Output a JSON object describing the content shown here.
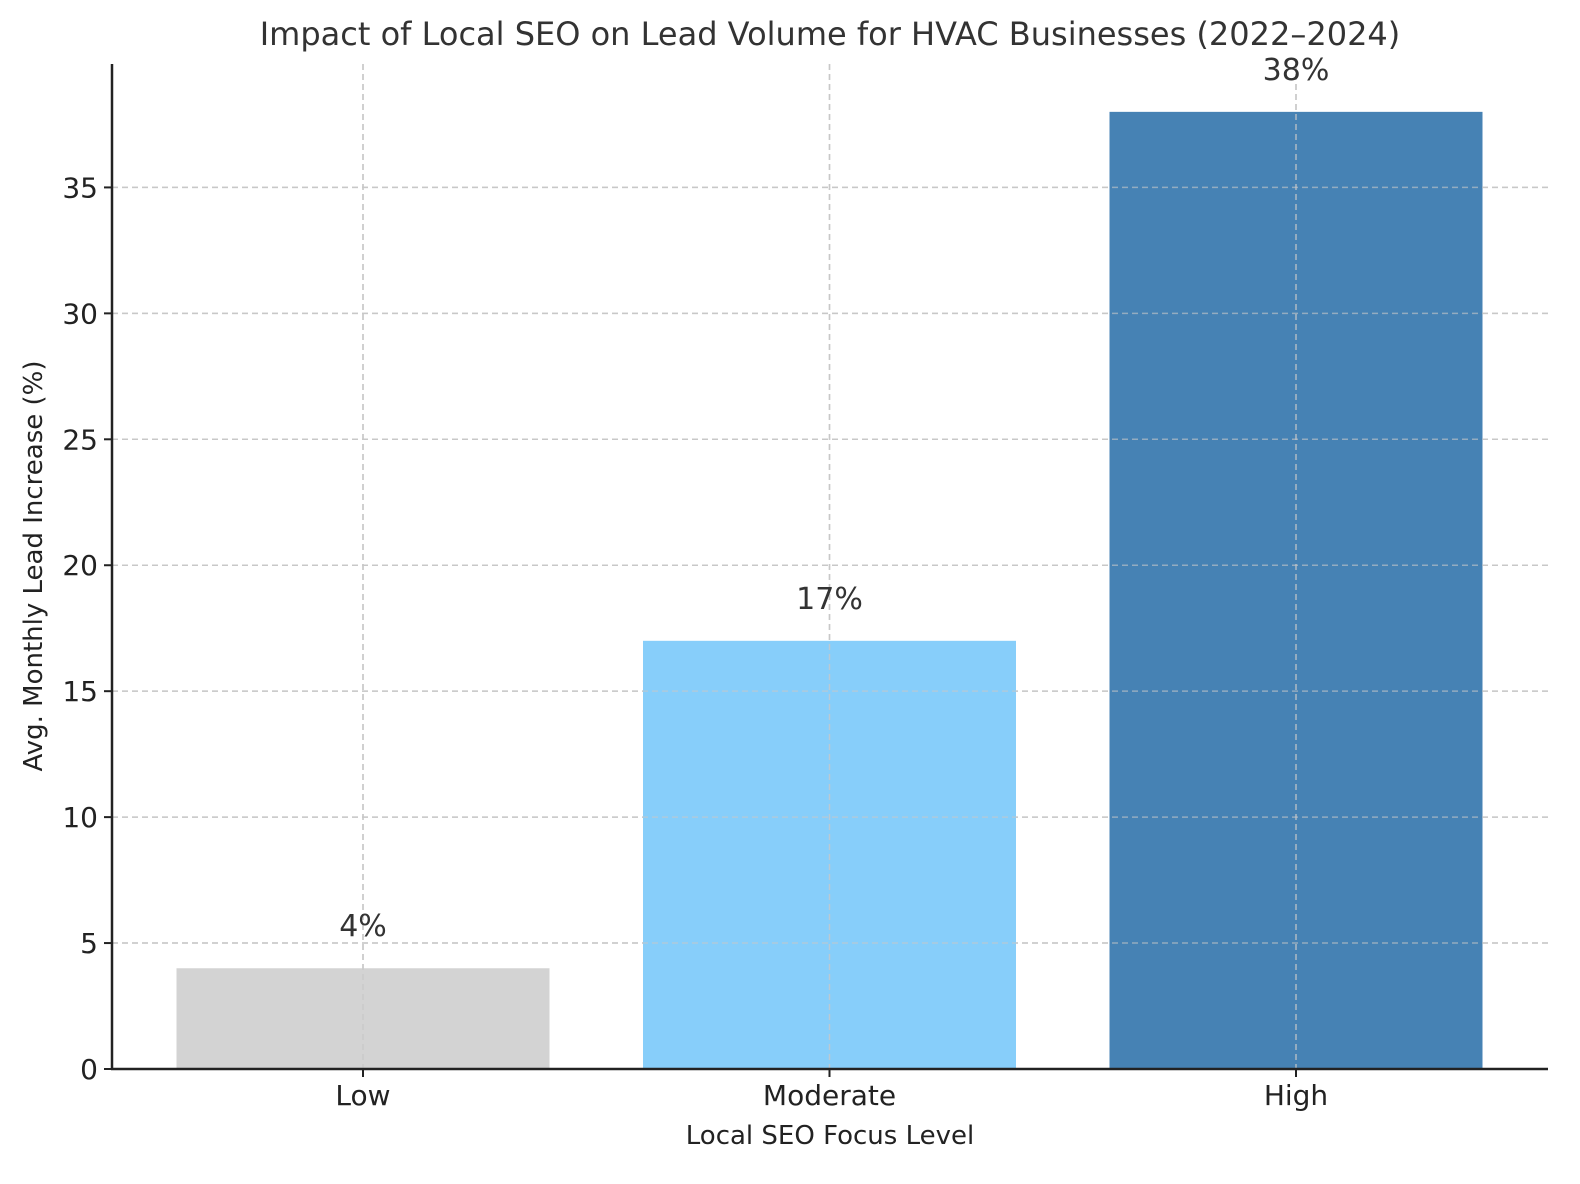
{
  "chart_data": {
    "type": "bar",
    "title": "Impact of Local SEO on Lead Volume for HVAC Businesses (2022–2024)",
    "xlabel": "Local SEO Focus Level",
    "ylabel": "Avg. Monthly Lead Increase (%)",
    "categories": [
      "Low",
      "Moderate",
      "High"
    ],
    "values": [
      4,
      17,
      38
    ],
    "data_labels": [
      "4%",
      "17%",
      "38%"
    ],
    "colors": [
      "#d3d3d3",
      "#87cefa",
      "#4682b4"
    ],
    "ylim": [
      0,
      39.9
    ],
    "yticks": [
      0,
      5,
      10,
      15,
      20,
      25,
      30,
      35
    ],
    "grid": true,
    "legend": "none"
  }
}
